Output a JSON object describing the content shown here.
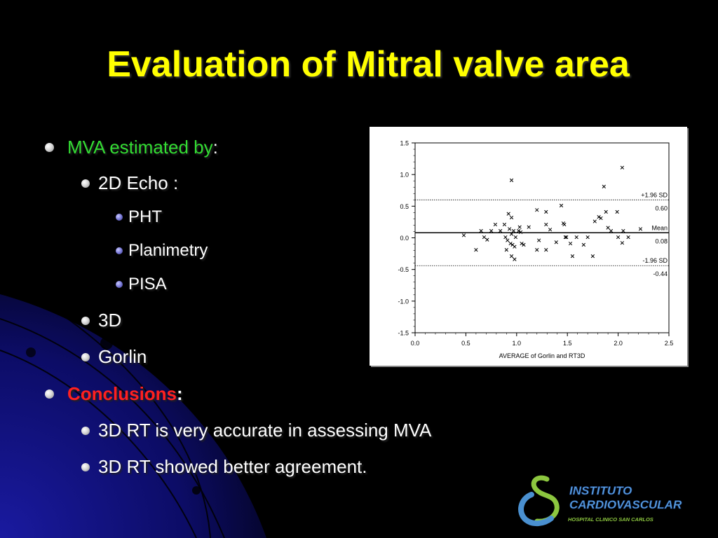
{
  "slide": {
    "title": "Evaluation of Mitral valve area",
    "bullets": {
      "mva_label": "MVA estimated by",
      "mva_colon": ":",
      "echo_2d": "2D Echo :",
      "pht": "PHT",
      "planimetry": "Planimetry",
      "pisa": "PISA",
      "three_d": "3D",
      "gorlin": "Gorlin",
      "conclusions_label": "Conclusions",
      "conclusions_colon": ":",
      "conclusion_1": "3D RT is very accurate in assessing MVA",
      "conclusion_2": "3D RT showed better agreement."
    }
  },
  "logo": {
    "line1": "INSTITUTO",
    "line2": "CARDIOVASCULAR",
    "line3": "HOSPITAL CLINICO SAN CARLOS"
  },
  "colors": {
    "title": "#ffff00",
    "green_text": "#33dd33",
    "red_text": "#ff2020",
    "background": "#000000",
    "bg_glow": "#1a1aa0"
  },
  "chart_data": {
    "type": "scatter",
    "xlabel": "AVERAGE of Gorlin and RT3D",
    "ylabel": "",
    "xlim": [
      0,
      2.5
    ],
    "ylim": [
      -1.5,
      1.5
    ],
    "xticks": [
      "0.0",
      "0.5",
      "1.0",
      "1.5",
      "2.0",
      "2.5"
    ],
    "yticks": [
      "1.5",
      "1.0",
      "0.5",
      "0.0",
      "-0.5",
      "-1.0",
      "-1.5"
    ],
    "marker": "x",
    "reference_lines": [
      {
        "label": "+1.96 SD",
        "value_label": "0.60",
        "y": 0.6,
        "style": "dotted"
      },
      {
        "label": "Mean",
        "value_label": "0.08",
        "y": 0.08,
        "style": "solid"
      },
      {
        "label": "-1.96 SD",
        "value_label": "-0.44",
        "y": -0.44,
        "style": "dotted"
      }
    ],
    "points": [
      [
        0.48,
        0.04
      ],
      [
        0.6,
        -0.19
      ],
      [
        0.65,
        0.11
      ],
      [
        0.68,
        0.01
      ],
      [
        0.71,
        -0.03
      ],
      [
        0.75,
        0.11
      ],
      [
        0.79,
        0.21
      ],
      [
        0.84,
        0.11
      ],
      [
        0.88,
        0.21
      ],
      [
        0.89,
        0.01
      ],
      [
        0.9,
        -0.19
      ],
      [
        0.91,
        -0.04
      ],
      [
        0.92,
        0.38
      ],
      [
        0.93,
        0.14
      ],
      [
        0.94,
        -0.09
      ],
      [
        0.95,
        0.32
      ],
      [
        0.95,
        0.06
      ],
      [
        0.95,
        -0.29
      ],
      [
        0.95,
        0.91
      ],
      [
        0.96,
        -0.11
      ],
      [
        0.97,
        0.11
      ],
      [
        0.98,
        -0.34
      ],
      [
        0.98,
        -0.14
      ],
      [
        0.99,
        0.01
      ],
      [
        1.02,
        0.11
      ],
      [
        1.03,
        0.17
      ],
      [
        1.04,
        0.09
      ],
      [
        1.05,
        -0.09
      ],
      [
        1.07,
        -0.11
      ],
      [
        1.12,
        0.17
      ],
      [
        1.2,
        0.44
      ],
      [
        1.2,
        -0.19
      ],
      [
        1.22,
        -0.04
      ],
      [
        1.29,
        0.41
      ],
      [
        1.29,
        0.21
      ],
      [
        1.29,
        -0.19
      ],
      [
        1.33,
        0.13
      ],
      [
        1.39,
        -0.07
      ],
      [
        1.44,
        0.51
      ],
      [
        1.46,
        0.23
      ],
      [
        1.47,
        0.21
      ],
      [
        1.48,
        0.01
      ],
      [
        1.49,
        0.01
      ],
      [
        1.53,
        -0.09
      ],
      [
        1.55,
        -0.29
      ],
      [
        1.59,
        0.01
      ],
      [
        1.66,
        -0.11
      ],
      [
        1.7,
        0.01
      ],
      [
        1.75,
        -0.29
      ],
      [
        1.77,
        0.26
      ],
      [
        1.81,
        0.33
      ],
      [
        1.83,
        0.31
      ],
      [
        1.86,
        0.81
      ],
      [
        1.88,
        0.41
      ],
      [
        1.9,
        0.16
      ],
      [
        1.93,
        0.11
      ],
      [
        1.99,
        0.41
      ],
      [
        2.0,
        0.01
      ],
      [
        2.04,
        1.11
      ],
      [
        2.04,
        -0.08
      ],
      [
        2.05,
        0.11
      ],
      [
        2.1,
        0.01
      ],
      [
        2.22,
        0.14
      ]
    ]
  }
}
